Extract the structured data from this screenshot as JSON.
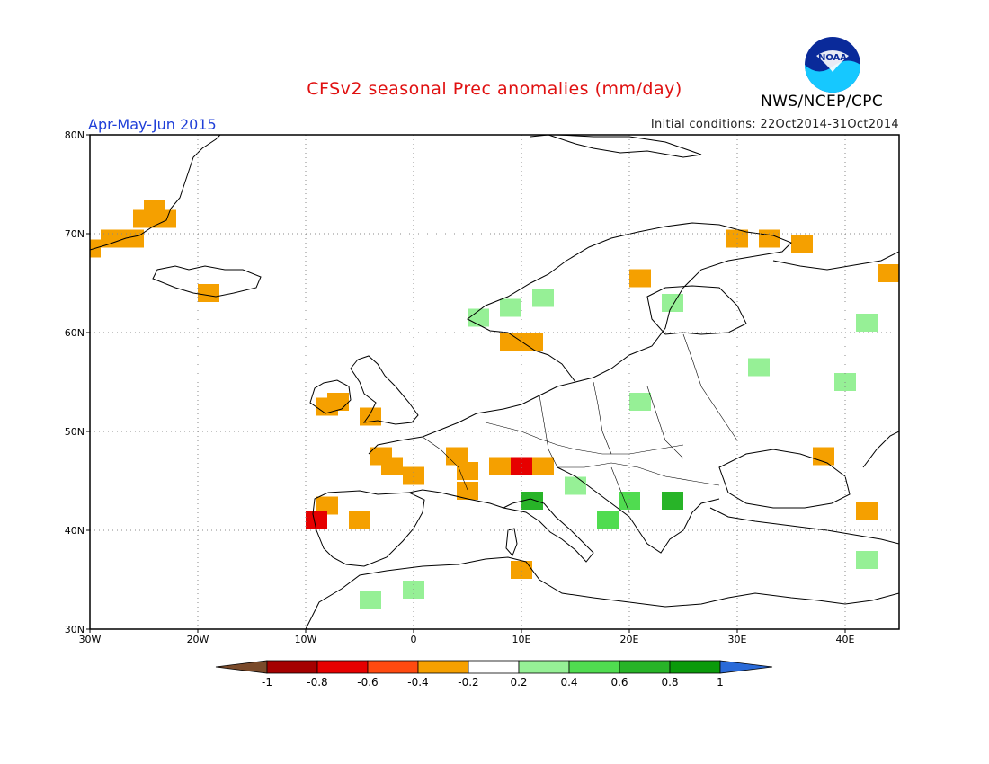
{
  "title": "CFSv2 seasonal Prec anomalies (mm/day)",
  "period": "Apr-May-Jun 2015",
  "initial_conditions": "Initial conditions: 22Oct2014-31Oct2014",
  "organization": "NWS/NCEP/CPC",
  "logo_text": "NOAA",
  "map": {
    "lon_ticks": [
      "30W",
      "20W",
      "10W",
      "0",
      "10E",
      "20E",
      "30E",
      "40E"
    ],
    "lat_ticks": [
      "80N",
      "70N",
      "60N",
      "50N",
      "40N",
      "30N"
    ],
    "lon_range": [
      -30,
      45
    ],
    "lat_range": [
      30,
      80
    ],
    "grid": true
  },
  "colorbar": {
    "labels": [
      "-1",
      "-0.8",
      "-0.6",
      "-0.4",
      "-0.2",
      "0.2",
      "0.4",
      "0.6",
      "0.8",
      "1"
    ],
    "colors": {
      "lt_-1": "#7a4a2a",
      "-1_-0.8": "#a50000",
      "-0.8_-0.6": "#e60000",
      "-0.6_-0.4": "#ff4a10",
      "-0.4_-0.2": "#f5a000",
      "-0.2_0.2": "#ffffff",
      "0.2_0.4": "#96f096",
      "0.4_0.6": "#50dc50",
      "0.6_0.8": "#28b428",
      "0.8_1": "#0a9a0a",
      "gt_1": "#2a6ad8"
    }
  },
  "chart_data": {
    "type": "heatmap",
    "title": "CFSv2 seasonal Prec anomalies (mm/day)",
    "subtitle": "Apr-May-Jun 2015",
    "units": "mm/day",
    "xlim": [
      -30,
      45
    ],
    "ylim": [
      30,
      80
    ],
    "levels": [
      -1,
      -0.8,
      -0.6,
      -0.4,
      -0.2,
      0.2,
      0.4,
      0.6,
      0.8,
      1
    ],
    "anomaly_cells": [
      {
        "lon": -30,
        "lat": 68.5,
        "v": -0.3
      },
      {
        "lon": -28,
        "lat": 69.5,
        "v": -0.3
      },
      {
        "lon": -26,
        "lat": 69.5,
        "v": -0.3
      },
      {
        "lon": -25,
        "lat": 71.5,
        "v": -0.3
      },
      {
        "lon": -24,
        "lat": 72.5,
        "v": -0.3
      },
      {
        "lon": -23,
        "lat": 71.5,
        "v": -0.3
      },
      {
        "lon": -19,
        "lat": 64,
        "v": -0.3
      },
      {
        "lon": -7,
        "lat": 53,
        "v": -0.3
      },
      {
        "lon": -8,
        "lat": 52.5,
        "v": -0.3
      },
      {
        "lon": -4,
        "lat": 51.5,
        "v": -0.3
      },
      {
        "lon": -3,
        "lat": 47.5,
        "v": -0.3
      },
      {
        "lon": -2,
        "lat": 46.5,
        "v": -0.3
      },
      {
        "lon": 0,
        "lat": 45.5,
        "v": -0.3
      },
      {
        "lon": 4,
        "lat": 47.5,
        "v": -0.3
      },
      {
        "lon": 5,
        "lat": 46,
        "v": -0.3
      },
      {
        "lon": 8,
        "lat": 46.5,
        "v": -0.3
      },
      {
        "lon": 10,
        "lat": 46.5,
        "v": -0.7
      },
      {
        "lon": 12,
        "lat": 46.5,
        "v": -0.3
      },
      {
        "lon": 5,
        "lat": 44,
        "v": -0.3
      },
      {
        "lon": -8,
        "lat": 42.5,
        "v": -0.3
      },
      {
        "lon": -9,
        "lat": 41,
        "v": -0.7
      },
      {
        "lon": -5,
        "lat": 41,
        "v": -0.3
      },
      {
        "lon": 10,
        "lat": 36,
        "v": -0.3
      },
      {
        "lon": 9,
        "lat": 59,
        "v": -0.3
      },
      {
        "lon": 11,
        "lat": 59,
        "v": -0.3
      },
      {
        "lon": 21,
        "lat": 65.5,
        "v": -0.3
      },
      {
        "lon": 30,
        "lat": 69.5,
        "v": -0.3
      },
      {
        "lon": 33,
        "lat": 69.5,
        "v": -0.3
      },
      {
        "lon": 36,
        "lat": 69,
        "v": -0.3
      },
      {
        "lon": 38,
        "lat": 47.5,
        "v": -0.3
      },
      {
        "lon": 42,
        "lat": 42,
        "v": -0.3
      },
      {
        "lon": 44,
        "lat": 66,
        "v": -0.3
      },
      {
        "lon": 6,
        "lat": 61.5,
        "v": 0.3
      },
      {
        "lon": 9,
        "lat": 62.5,
        "v": 0.3
      },
      {
        "lon": 12,
        "lat": 63.5,
        "v": 0.3
      },
      {
        "lon": 24,
        "lat": 63,
        "v": 0.3
      },
      {
        "lon": 32,
        "lat": 56.5,
        "v": 0.3
      },
      {
        "lon": 21,
        "lat": 53,
        "v": 0.3
      },
      {
        "lon": 40,
        "lat": 55,
        "v": 0.3
      },
      {
        "lon": 42,
        "lat": 61,
        "v": 0.3
      },
      {
        "lon": 15,
        "lat": 44.5,
        "v": 0.3
      },
      {
        "lon": 11,
        "lat": 43,
        "v": 0.7
      },
      {
        "lon": 24,
        "lat": 43,
        "v": 0.7
      },
      {
        "lon": 20,
        "lat": 43,
        "v": 0.5
      },
      {
        "lon": 18,
        "lat": 41,
        "v": 0.5
      },
      {
        "lon": 0,
        "lat": 34,
        "v": 0.3
      },
      {
        "lon": -4,
        "lat": 33,
        "v": 0.3
      },
      {
        "lon": 42,
        "lat": 37,
        "v": 0.3
      }
    ]
  }
}
